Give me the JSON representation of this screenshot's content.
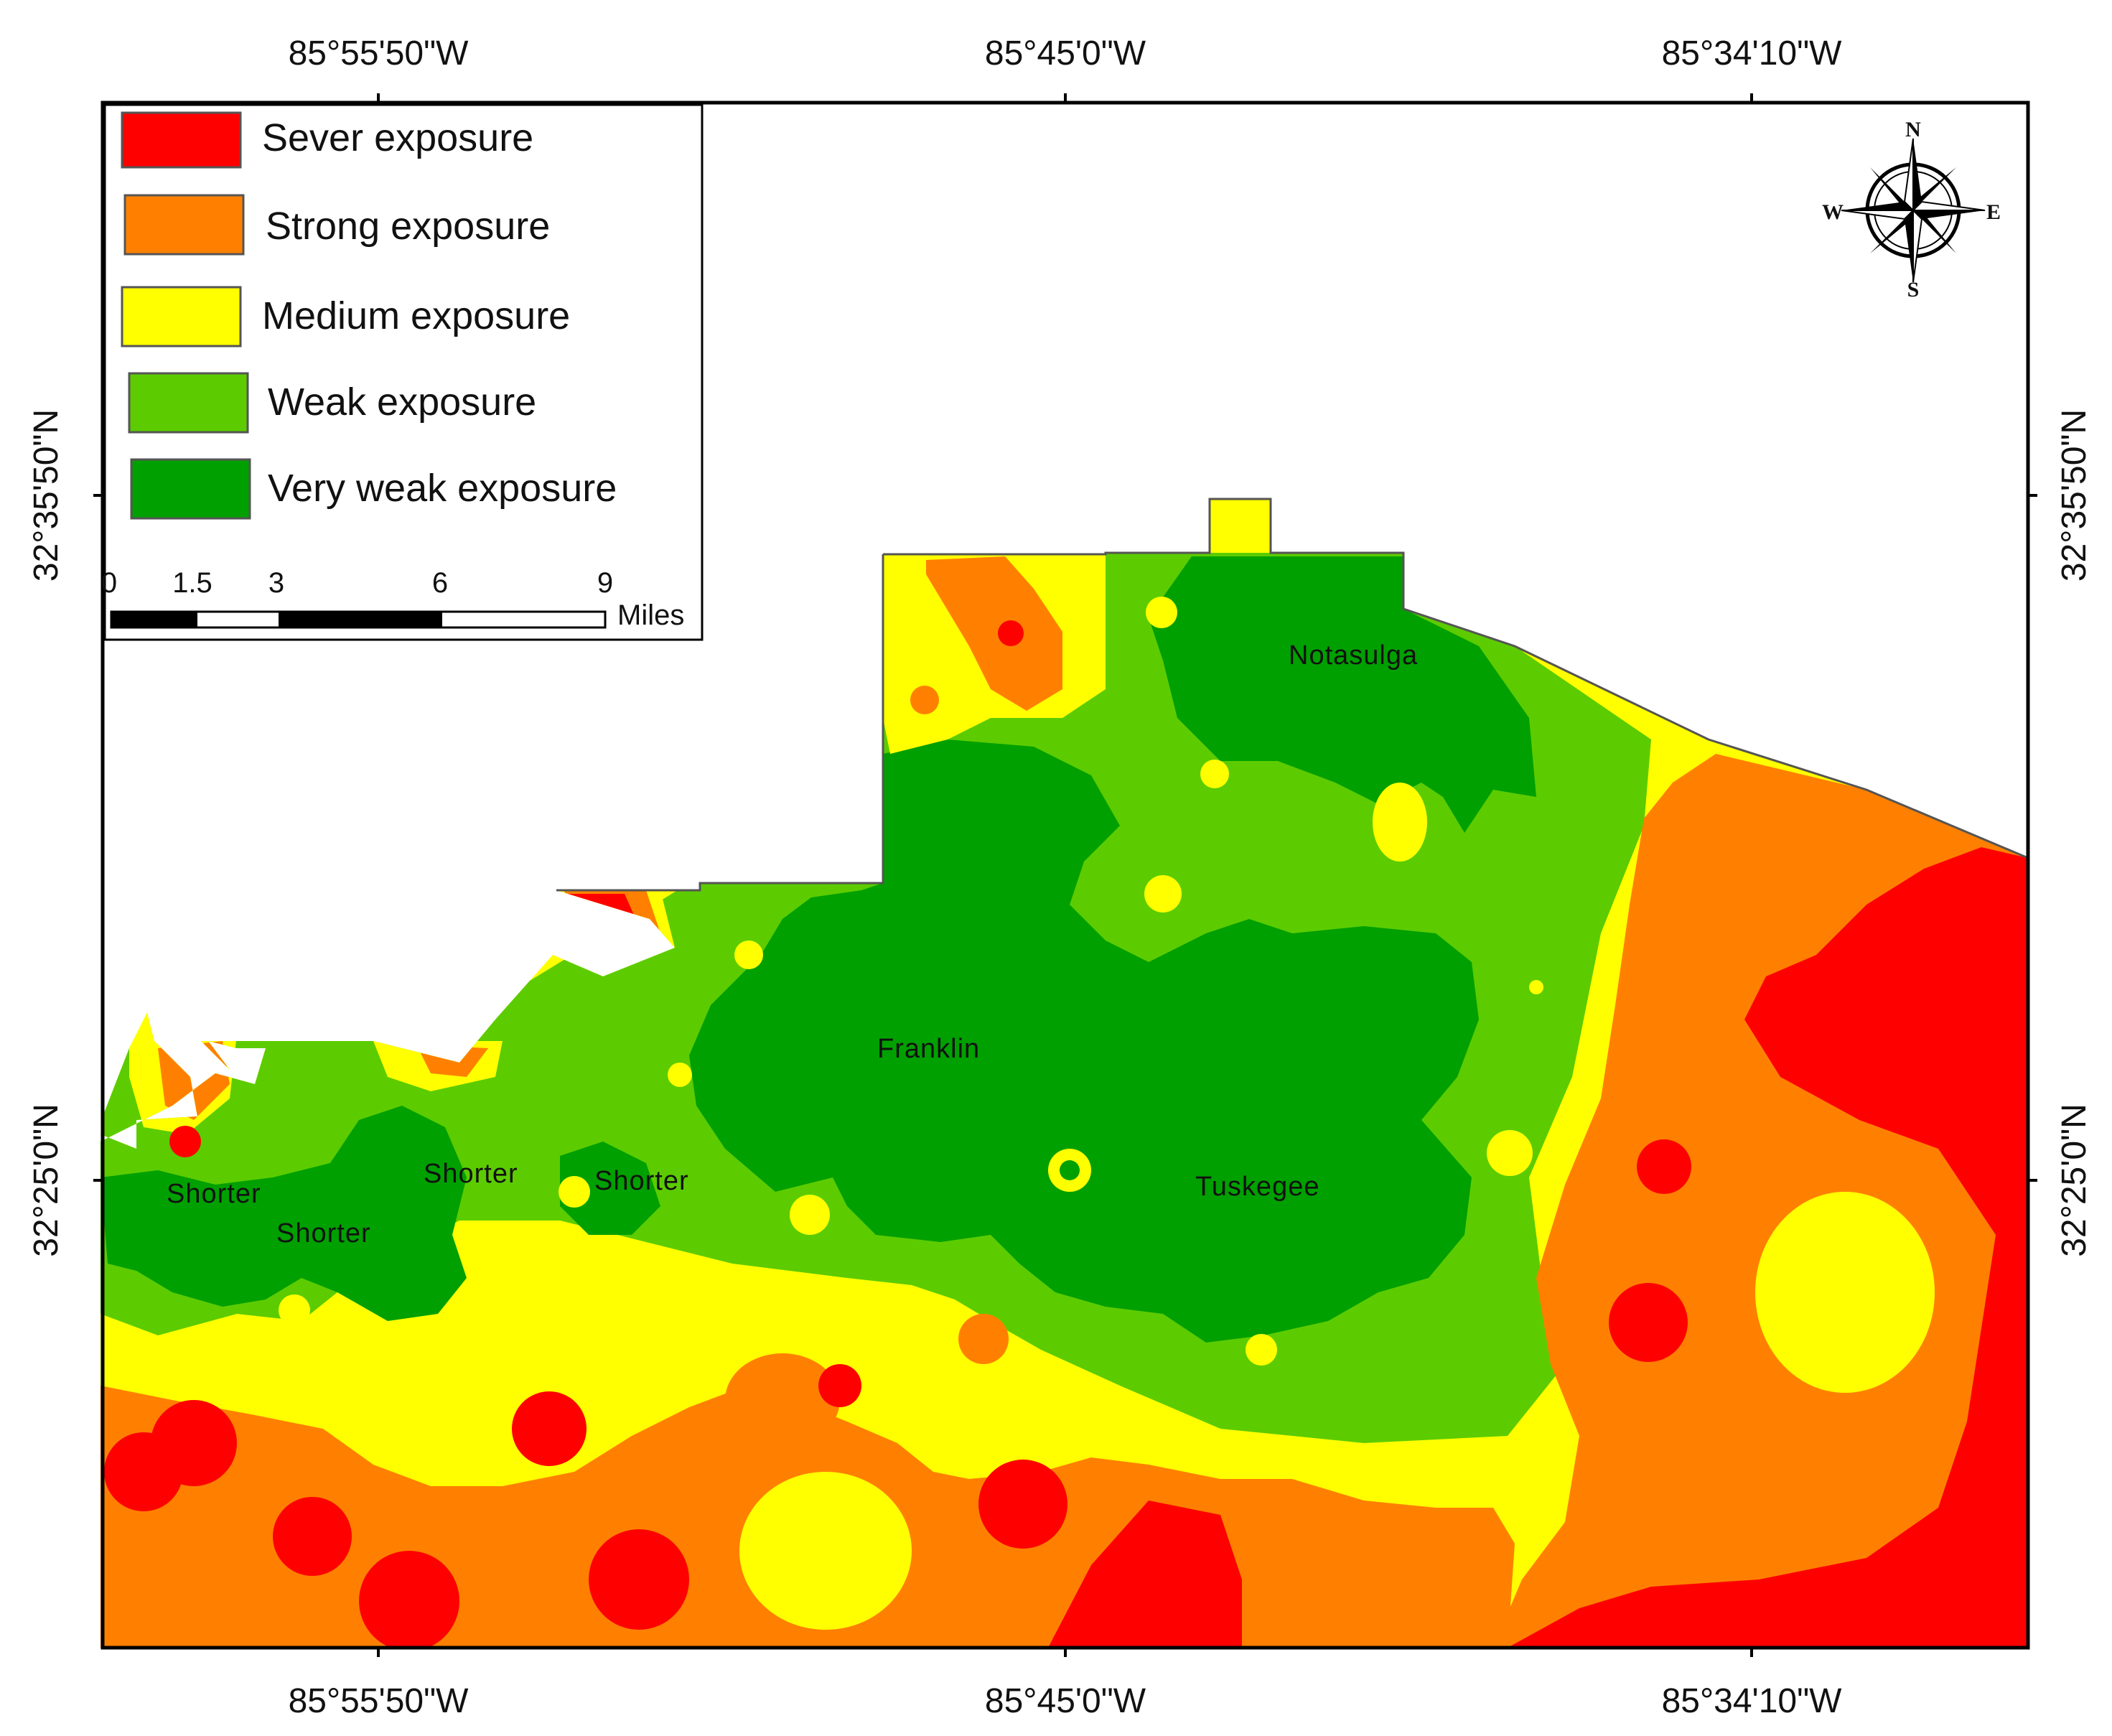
{
  "coordinates": {
    "top": [
      "85°55'50\"W",
      "85°45'0\"W",
      "85°34'10\"W"
    ],
    "bottom": [
      "85°55'50\"W",
      "85°45'0\"W",
      "85°34'10\"W"
    ],
    "left": [
      "32°35'50\"N",
      "32°25'0\"N"
    ],
    "right": [
      "32°35'50\"N",
      "32°25'0\"N"
    ]
  },
  "legend": {
    "items": [
      {
        "label": "Sever exposure",
        "color": "#ff0000"
      },
      {
        "label": "Strong exposure",
        "color": "#ff8000"
      },
      {
        "label": "Medium exposure",
        "color": "#ffff00"
      },
      {
        "label": "Weak exposure",
        "color": "#5ccc00"
      },
      {
        "label": "Very weak exposure",
        "color": "#00a000"
      }
    ]
  },
  "scale_bar": {
    "ticks": [
      "0",
      "1.5",
      "3",
      "6",
      "9"
    ],
    "unit": "Miles"
  },
  "compass": {
    "n": "N",
    "s": "S",
    "e": "E",
    "w": "W"
  },
  "places": [
    "Notasulga",
    "Franklin",
    "Tuskegee",
    "Shorter",
    "Shorter",
    "Shorter",
    "Shorter"
  ]
}
